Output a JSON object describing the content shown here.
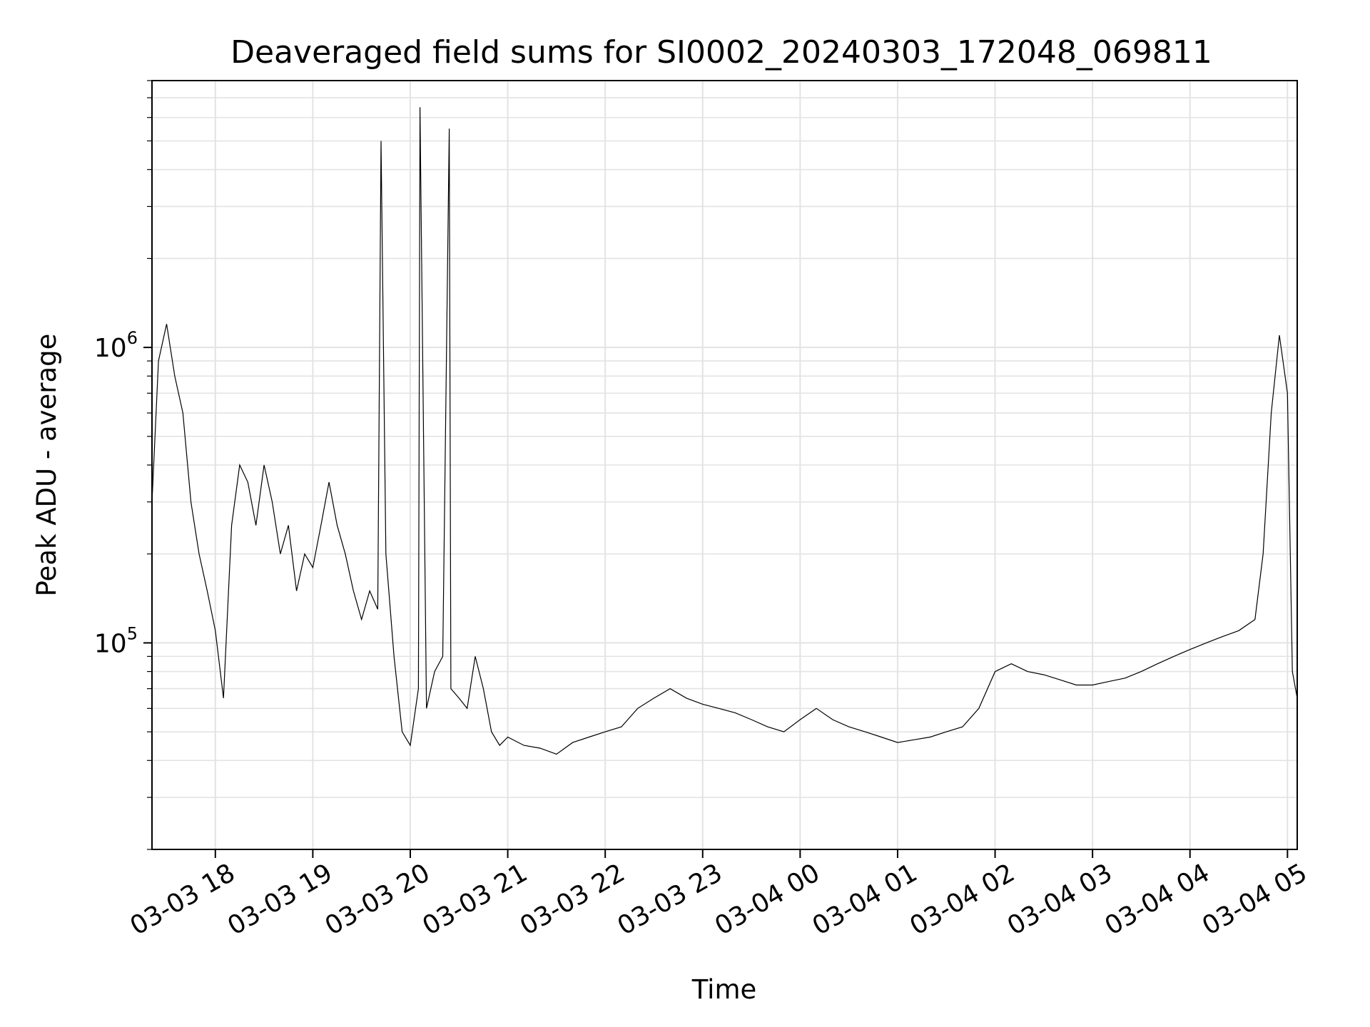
{
  "chart_data": {
    "type": "line",
    "title": "Deaveraged field sums for SI0002_20240303_172048_069811",
    "xlabel": "Time",
    "ylabel": "Peak ADU - average",
    "xscale": "time",
    "yscale": "log",
    "grid": true,
    "legend": "none",
    "xlim": [
      "2024-03-03 17:21",
      "2024-03-04 05:06"
    ],
    "ylim": [
      20000,
      8000000
    ],
    "x_ticks": [
      {
        "t": "2024-03-03 18:00",
        "label": "03-03 18"
      },
      {
        "t": "2024-03-03 19:00",
        "label": "03-03 19"
      },
      {
        "t": "2024-03-03 20:00",
        "label": "03-03 20"
      },
      {
        "t": "2024-03-03 21:00",
        "label": "03-03 21"
      },
      {
        "t": "2024-03-03 22:00",
        "label": "03-03 22"
      },
      {
        "t": "2024-03-03 23:00",
        "label": "03-03 23"
      },
      {
        "t": "2024-03-04 00:00",
        "label": "03-04 00"
      },
      {
        "t": "2024-03-04 01:00",
        "label": "03-04 01"
      },
      {
        "t": "2024-03-04 02:00",
        "label": "03-04 02"
      },
      {
        "t": "2024-03-04 03:00",
        "label": "03-04 03"
      },
      {
        "t": "2024-03-04 04:00",
        "label": "03-04 04"
      },
      {
        "t": "2024-03-04 05:00",
        "label": "03-04 05"
      }
    ],
    "y_ticks": [
      {
        "value": 100000,
        "base": "10",
        "exp": "5"
      },
      {
        "value": 1000000,
        "base": "10",
        "exp": "6"
      }
    ],
    "line_color": "#000000",
    "series": [
      {
        "x": [
          "2024-03-03 17:21",
          "2024-03-03 17:25",
          "2024-03-03 17:30",
          "2024-03-03 17:35",
          "2024-03-03 17:40",
          "2024-03-03 17:45",
          "2024-03-03 17:50",
          "2024-03-03 17:55",
          "2024-03-03 18:00",
          "2024-03-03 18:05",
          "2024-03-03 18:10",
          "2024-03-03 18:15",
          "2024-03-03 18:20",
          "2024-03-03 18:25",
          "2024-03-03 18:30",
          "2024-03-03 18:35",
          "2024-03-03 18:40",
          "2024-03-03 18:45",
          "2024-03-03 18:50",
          "2024-03-03 18:55",
          "2024-03-03 19:00",
          "2024-03-03 19:05",
          "2024-03-03 19:10",
          "2024-03-03 19:15",
          "2024-03-03 19:20",
          "2024-03-03 19:25",
          "2024-03-03 19:30",
          "2024-03-03 19:35",
          "2024-03-03 19:40",
          "2024-03-03 19:42",
          "2024-03-03 19:45",
          "2024-03-03 19:50",
          "2024-03-03 19:55",
          "2024-03-03 20:00",
          "2024-03-03 20:05",
          "2024-03-03 20:06",
          "2024-03-03 20:10",
          "2024-03-03 20:15",
          "2024-03-03 20:20",
          "2024-03-03 20:24",
          "2024-03-03 20:25",
          "2024-03-03 20:30",
          "2024-03-03 20:35",
          "2024-03-03 20:40",
          "2024-03-03 20:45",
          "2024-03-03 20:50",
          "2024-03-03 20:55",
          "2024-03-03 21:00",
          "2024-03-03 21:10",
          "2024-03-03 21:20",
          "2024-03-03 21:30",
          "2024-03-03 21:40",
          "2024-03-03 21:50",
          "2024-03-03 22:00",
          "2024-03-03 22:10",
          "2024-03-03 22:20",
          "2024-03-03 22:30",
          "2024-03-03 22:40",
          "2024-03-03 22:50",
          "2024-03-03 23:00",
          "2024-03-03 23:10",
          "2024-03-03 23:20",
          "2024-03-03 23:30",
          "2024-03-03 23:40",
          "2024-03-03 23:50",
          "2024-03-04 00:00",
          "2024-03-04 00:10",
          "2024-03-04 00:20",
          "2024-03-04 00:30",
          "2024-03-04 00:40",
          "2024-03-04 00:50",
          "2024-03-04 01:00",
          "2024-03-04 01:10",
          "2024-03-04 01:20",
          "2024-03-04 01:30",
          "2024-03-04 01:40",
          "2024-03-04 01:50",
          "2024-03-04 02:00",
          "2024-03-04 02:10",
          "2024-03-04 02:20",
          "2024-03-04 02:30",
          "2024-03-04 02:40",
          "2024-03-04 02:50",
          "2024-03-04 03:00",
          "2024-03-04 03:10",
          "2024-03-04 03:20",
          "2024-03-04 03:30",
          "2024-03-04 03:40",
          "2024-03-04 03:50",
          "2024-03-04 04:00",
          "2024-03-04 04:10",
          "2024-03-04 04:20",
          "2024-03-04 04:30",
          "2024-03-04 04:40",
          "2024-03-04 04:45",
          "2024-03-04 04:50",
          "2024-03-04 04:55",
          "2024-03-04 05:00",
          "2024-03-04 05:03",
          "2024-03-04 05:06"
        ],
        "y": [
          300000,
          900000,
          1200000,
          800000,
          600000,
          300000,
          200000,
          150000,
          110000,
          65000,
          250000,
          400000,
          350000,
          250000,
          400000,
          300000,
          200000,
          250000,
          150000,
          200000,
          180000,
          250000,
          350000,
          250000,
          200000,
          150000,
          120000,
          150000,
          130000,
          5000000,
          200000,
          90000,
          50000,
          45000,
          70000,
          6500000,
          60000,
          80000,
          90000,
          5500000,
          70000,
          65000,
          60000,
          90000,
          70000,
          50000,
          45000,
          48000,
          45000,
          44000,
          42000,
          46000,
          48000,
          50000,
          52000,
          60000,
          65000,
          70000,
          65000,
          62000,
          60000,
          58000,
          55000,
          52000,
          50000,
          55000,
          60000,
          55000,
          52000,
          50000,
          48000,
          46000,
          47000,
          48000,
          50000,
          52000,
          60000,
          80000,
          85000,
          80000,
          78000,
          75000,
          72000,
          72000,
          74000,
          76000,
          80000,
          85000,
          90000,
          95000,
          100000,
          105000,
          110000,
          120000,
          200000,
          600000,
          1100000,
          700000,
          80000,
          65000
        ]
      }
    ]
  }
}
